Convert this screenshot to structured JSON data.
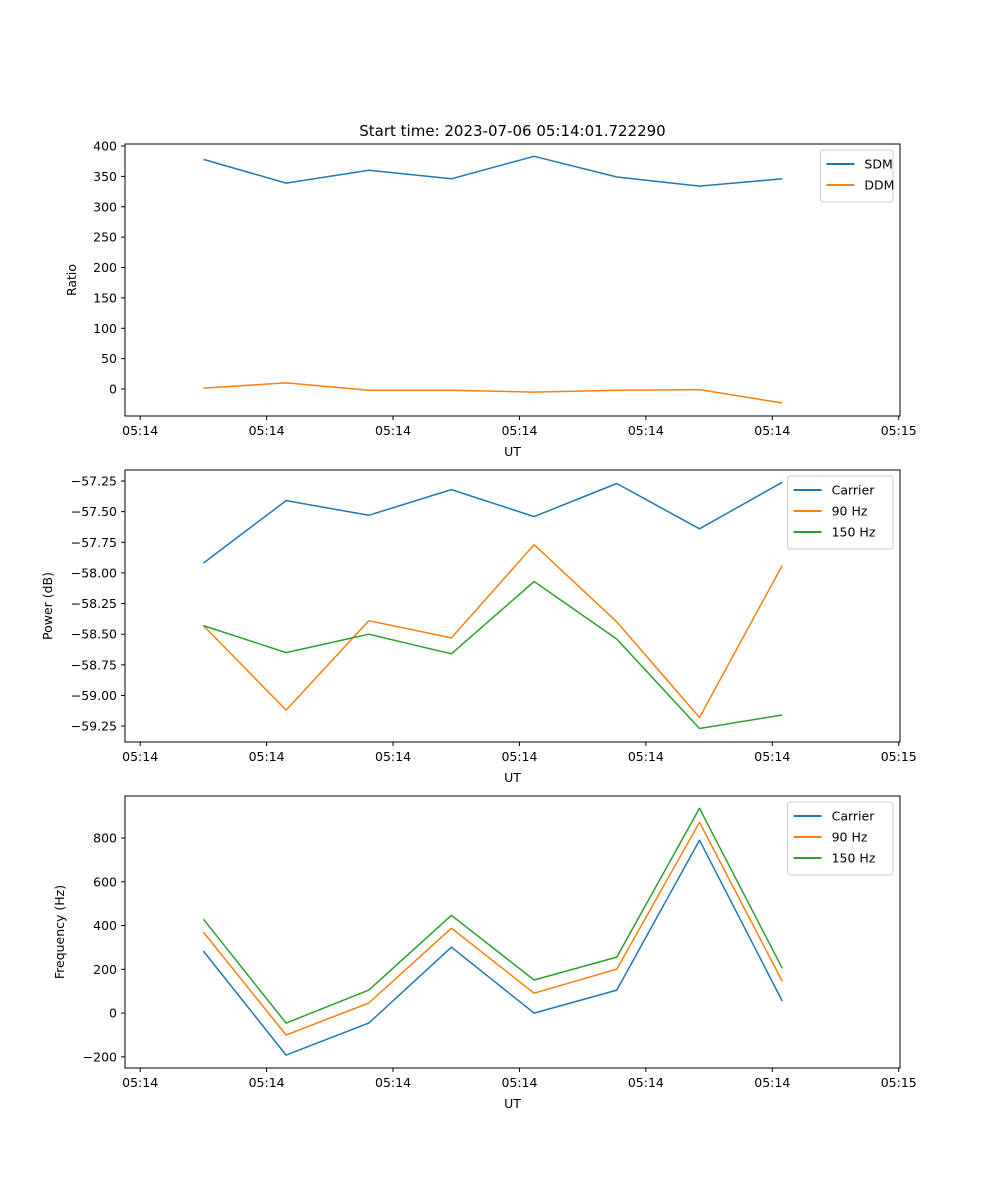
{
  "chart_data": [
    {
      "type": "line",
      "title": "Start time: 2023-07-06 05:14:01.722290",
      "xlabel": "UT",
      "ylabel": "Ratio",
      "x_tick_labels": [
        "05:14",
        "05:14",
        "05:14",
        "05:14",
        "05:14",
        "05:14",
        "05:15"
      ],
      "x_ticks": [
        0,
        1,
        2,
        3,
        4,
        5,
        6
      ],
      "xlim": [
        -0.12,
        6.01
      ],
      "y_ticks": [
        0,
        50,
        100,
        150,
        200,
        250,
        300,
        350,
        400
      ],
      "y_tick_labels": [
        "0",
        "50",
        "100",
        "150",
        "200",
        "250",
        "300",
        "350",
        "400"
      ],
      "ylim": [
        -44.4,
        403.3
      ],
      "legend": "top-right",
      "x": [
        0.5,
        1.154,
        1.808,
        2.462,
        3.116,
        3.77,
        4.424,
        5.078
      ],
      "series": [
        {
          "name": "SDM",
          "color": "#1f77b4",
          "values": [
            378,
            339,
            360,
            346,
            383,
            349,
            334,
            346
          ]
        },
        {
          "name": "DDM",
          "color": "#ff7f0e",
          "values": [
            1.6,
            10,
            -2,
            -2,
            -5,
            -2,
            -1,
            -23
          ]
        }
      ]
    },
    {
      "type": "line",
      "title": "",
      "xlabel": "UT",
      "ylabel": "Power (dB)",
      "x_tick_labels": [
        "05:14",
        "05:14",
        "05:14",
        "05:14",
        "05:14",
        "05:14",
        "05:15"
      ],
      "x_ticks": [
        0,
        1,
        2,
        3,
        4,
        5,
        6
      ],
      "xlim": [
        -0.12,
        6.01
      ],
      "y_ticks": [
        -59.25,
        -59.0,
        -58.75,
        -58.5,
        -58.25,
        -58.0,
        -57.75,
        -57.5,
        -57.25
      ],
      "y_tick_labels": [
        "−59.25",
        "−59.00",
        "−58.75",
        "−58.50",
        "−58.25",
        "−58.00",
        "−57.75",
        "−57.50",
        "−57.25"
      ],
      "ylim": [
        -59.38,
        -57.16
      ],
      "legend": "top-right",
      "x": [
        0.5,
        1.154,
        1.808,
        2.462,
        3.116,
        3.77,
        4.424,
        5.078
      ],
      "series": [
        {
          "name": "Carrier",
          "color": "#1f77b4",
          "values": [
            -57.92,
            -57.41,
            -57.53,
            -57.32,
            -57.54,
            -57.27,
            -57.64,
            -57.26
          ]
        },
        {
          "name": "90 Hz",
          "color": "#ff7f0e",
          "values": [
            -58.43,
            -59.12,
            -58.39,
            -58.53,
            -57.77,
            -58.4,
            -59.18,
            -57.94
          ]
        },
        {
          "name": "150 Hz",
          "color": "#2ca02c",
          "values": [
            -58.43,
            -58.65,
            -58.5,
            -58.66,
            -58.07,
            -58.54,
            -59.27,
            -59.16
          ]
        }
      ]
    },
    {
      "type": "line",
      "title": "",
      "xlabel": "UT",
      "ylabel": "Frequency (Hz)",
      "x_tick_labels": [
        "05:14",
        "05:14",
        "05:14",
        "05:14",
        "05:14",
        "05:14",
        "05:15"
      ],
      "x_ticks": [
        0,
        1,
        2,
        3,
        4,
        5,
        6
      ],
      "xlim": [
        -0.12,
        6.01
      ],
      "y_ticks": [
        -200,
        0,
        200,
        400,
        600,
        800
      ],
      "y_tick_labels": [
        "−200",
        "0",
        "200",
        "400",
        "600",
        "800"
      ],
      "ylim": [
        -251,
        992
      ],
      "legend": "top-right",
      "x": [
        0.5,
        1.154,
        1.808,
        2.462,
        3.116,
        3.77,
        4.424,
        5.078
      ],
      "series": [
        {
          "name": "Carrier",
          "color": "#1f77b4",
          "values": [
            283,
            -192,
            -46,
            301,
            0,
            105,
            790,
            55
          ]
        },
        {
          "name": "90 Hz",
          "color": "#ff7f0e",
          "values": [
            370,
            -100,
            46,
            388,
            91,
            201,
            872,
            146
          ]
        },
        {
          "name": "150 Hz",
          "color": "#2ca02c",
          "values": [
            429,
            -46,
            105,
            447,
            151,
            256,
            936,
            205
          ]
        }
      ]
    }
  ]
}
